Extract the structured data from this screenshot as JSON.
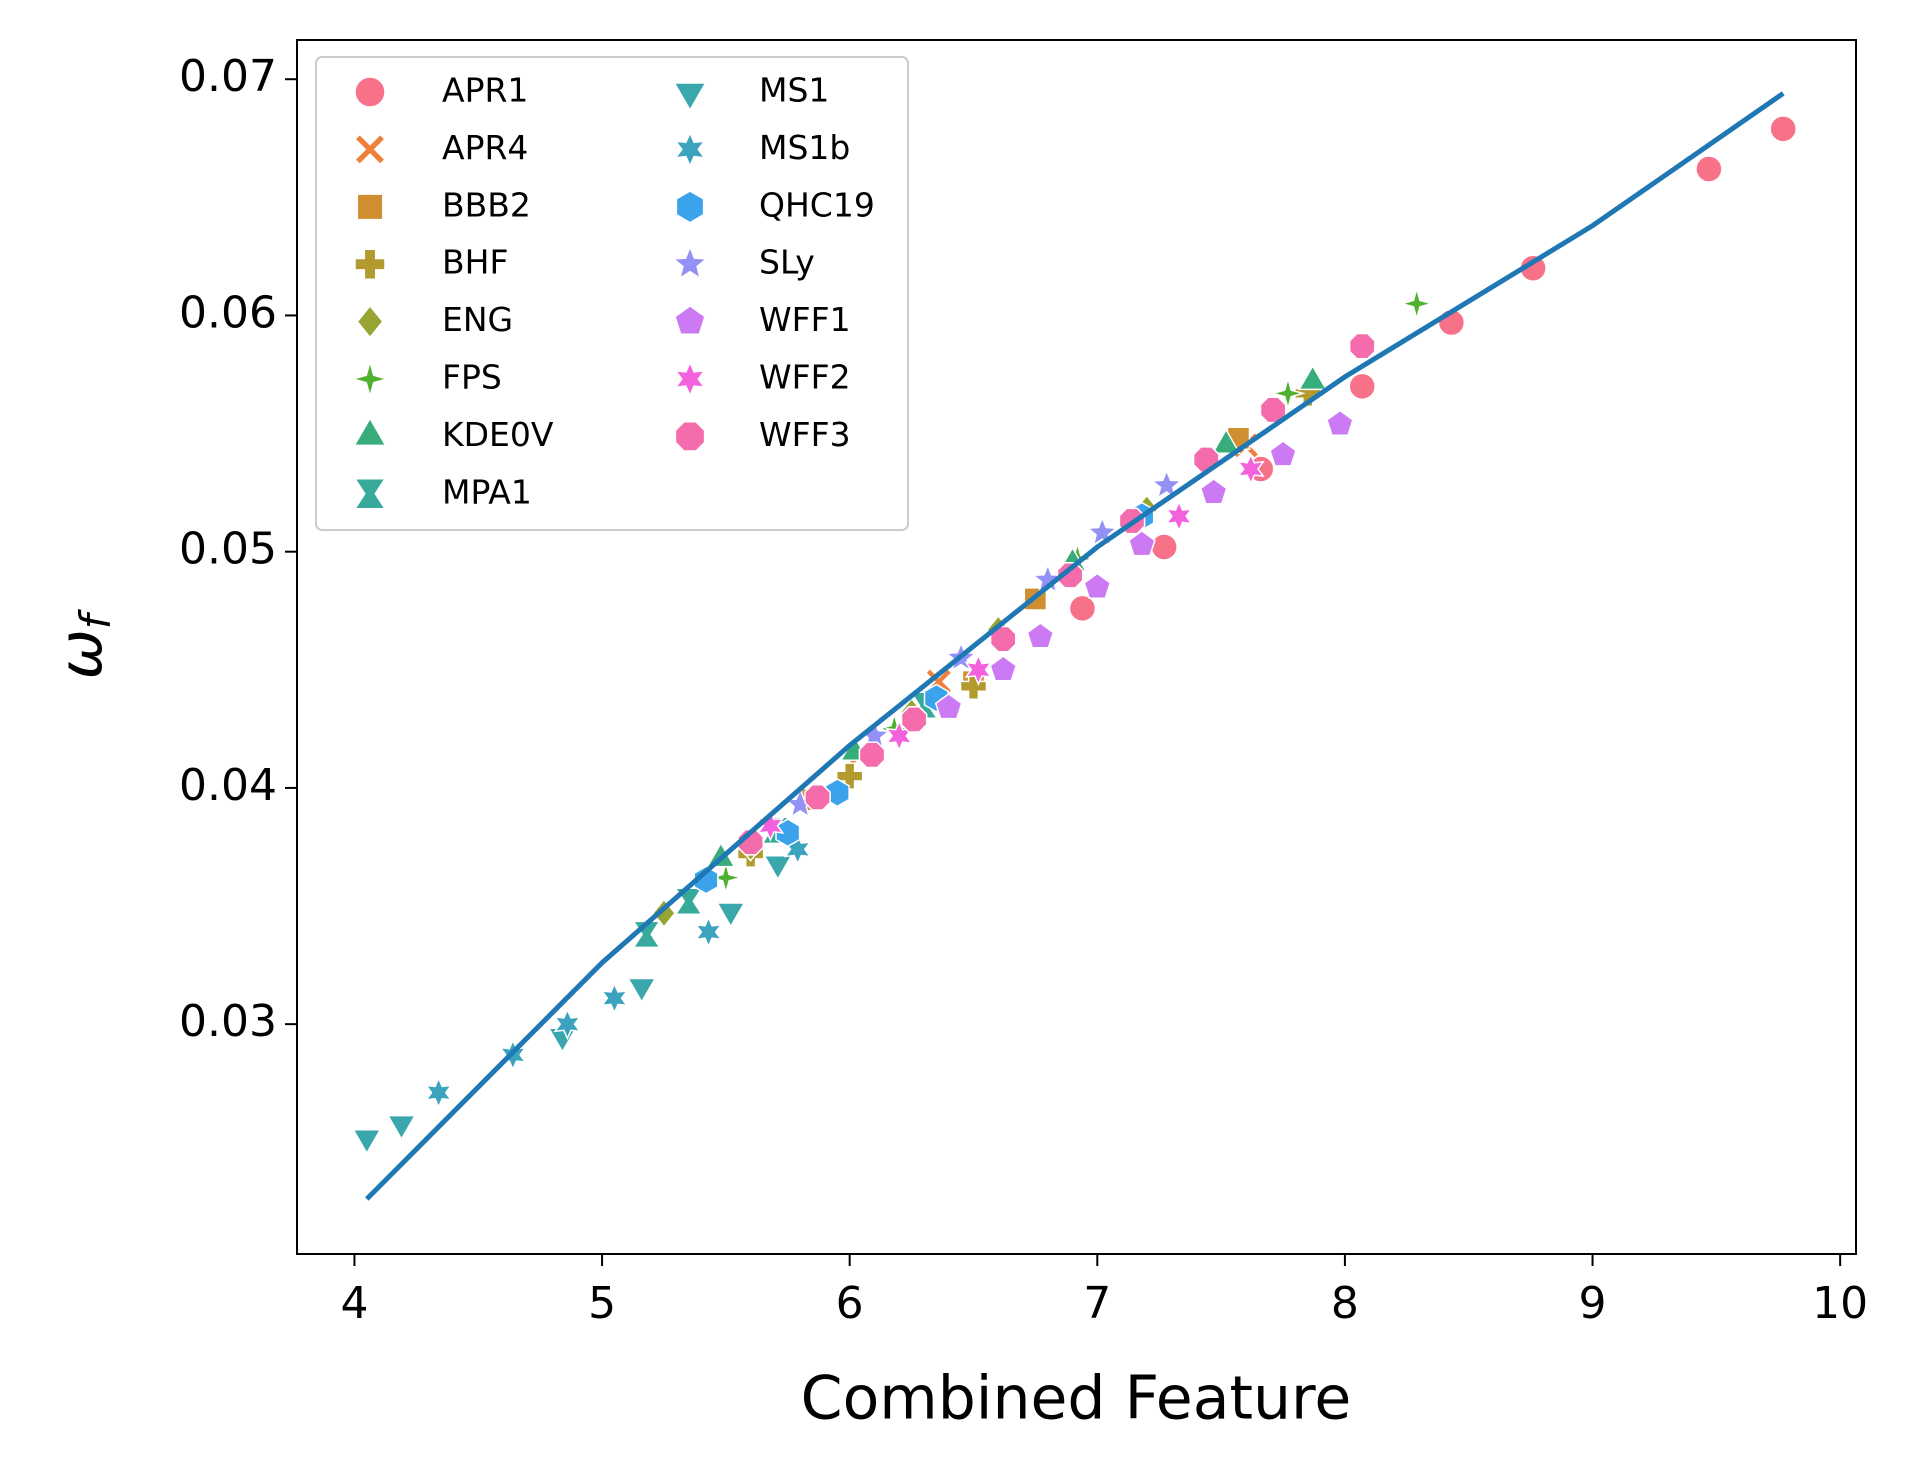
{
  "chart_data": {
    "type": "scatter",
    "xlabel": "Combined Feature",
    "ylabel": {
      "base": "ω",
      "sub": "f"
    },
    "xlim": [
      3.768,
      10.064
    ],
    "ylim": [
      0.02027,
      0.07166
    ],
    "xticks": [
      4,
      5,
      6,
      7,
      8,
      9,
      10
    ],
    "yticks": [
      0.03,
      0.04,
      0.05,
      0.06,
      0.07
    ],
    "legend": "upper left",
    "series": [
      {
        "name": "APR1",
        "color": "#f77189",
        "marker": "circle",
        "x": [
          9.77,
          9.47,
          8.76,
          8.43,
          8.07,
          7.66,
          7.27,
          6.94
        ],
        "values": [
          0.0679,
          0.0662,
          0.062,
          0.0597,
          0.057,
          0.0535,
          0.0502,
          0.0476
        ]
      },
      {
        "name": "APR4",
        "color": "#f07f3a",
        "marker": "x",
        "x": [
          6.36,
          6.05,
          7.6
        ],
        "values": [
          0.0445,
          0.0415,
          0.0545
        ]
      },
      {
        "name": "BBB2",
        "color": "#cf8f30",
        "marker": "square",
        "x": [
          7.57,
          6.75,
          6.5,
          5.85
        ],
        "values": [
          0.0548,
          0.048,
          0.0445,
          0.0395
        ]
      },
      {
        "name": "BHF",
        "color": "#b29a2f",
        "marker": "plus",
        "x": [
          7.85,
          6.5,
          6.0,
          5.6
        ],
        "values": [
          0.0567,
          0.0443,
          0.0405,
          0.0372
        ]
      },
      {
        "name": "ENG",
        "color": "#97a431",
        "marker": "diamond",
        "x": [
          5.25,
          5.6,
          6.25,
          7.2,
          6.6
        ],
        "values": [
          0.0347,
          0.0375,
          0.0432,
          0.0518,
          0.0467
        ]
      },
      {
        "name": "FPS",
        "color": "#50b131",
        "marker": "star4",
        "x": [
          8.29,
          7.77,
          6.92,
          6.18,
          5.5
        ],
        "values": [
          0.0605,
          0.0567,
          0.0497,
          0.0425,
          0.0362
        ]
      },
      {
        "name": "KDE0V",
        "color": "#36ad7a",
        "marker": "triangle-up",
        "x": [
          7.87,
          7.52,
          6.9,
          6.02,
          5.48
        ],
        "values": [
          0.0572,
          0.0545,
          0.0495,
          0.0415,
          0.037
        ]
      },
      {
        "name": "MPA1",
        "color": "#37aa9b",
        "marker": "hourglass",
        "x": [
          5.18,
          5.35,
          5.7,
          6.3
        ],
        "values": [
          0.0338,
          0.0352,
          0.0382,
          0.0435
        ]
      },
      {
        "name": "MS1",
        "color": "#39a7ac",
        "marker": "triangle-down",
        "x": [
          4.05,
          4.19,
          4.84,
          5.16,
          5.52,
          5.71
        ],
        "values": [
          0.0252,
          0.0258,
          0.0295,
          0.0316,
          0.0348,
          0.0368
        ]
      },
      {
        "name": "MS1b",
        "color": "#3ba3be",
        "marker": "star6",
        "x": [
          4.34,
          4.64,
          4.86,
          5.05,
          5.43,
          5.79
        ],
        "values": [
          0.0271,
          0.0287,
          0.03,
          0.0311,
          0.0339,
          0.0374
        ]
      },
      {
        "name": "QHC19",
        "color": "#3ba3ec",
        "marker": "hexagon",
        "x": [
          5.42,
          5.75,
          5.95,
          6.35,
          7.18
        ],
        "values": [
          0.0361,
          0.0381,
          0.0398,
          0.0438,
          0.0515
        ]
      },
      {
        "name": "SLy",
        "color": "#9491f6",
        "marker": "star5",
        "x": [
          7.28,
          7.02,
          6.8,
          6.45,
          6.1,
          5.8
        ],
        "values": [
          0.0528,
          0.0508,
          0.0488,
          0.0455,
          0.0422,
          0.0393
        ]
      },
      {
        "name": "WFF1",
        "color": "#cc79f4",
        "marker": "pentagon",
        "x": [
          7.98,
          7.75,
          7.47,
          7.18,
          7.0,
          6.77,
          6.62,
          6.4
        ],
        "values": [
          0.0554,
          0.0541,
          0.0525,
          0.0503,
          0.0485,
          0.0464,
          0.045,
          0.0434
        ]
      },
      {
        "name": "WFF2",
        "color": "#f461dd",
        "marker": "star6",
        "x": [
          7.62,
          7.33,
          6.52,
          6.2,
          5.68
        ],
        "values": [
          0.0535,
          0.0515,
          0.045,
          0.0422,
          0.0384
        ]
      },
      {
        "name": "WFF3",
        "color": "#f56cad",
        "marker": "octagon",
        "x": [
          8.07,
          7.71,
          7.44,
          7.14,
          6.89,
          6.62,
          6.26,
          6.09,
          5.87,
          5.6
        ],
        "values": [
          0.0587,
          0.056,
          0.0539,
          0.0513,
          0.049,
          0.0463,
          0.0429,
          0.0414,
          0.0396,
          0.0377
        ]
      }
    ],
    "fit": {
      "color": "#1f77b4",
      "x": [
        4.05,
        5,
        6,
        7,
        8,
        9,
        9.77
      ],
      "values": [
        0.0226,
        0.0326,
        0.0418,
        0.0502,
        0.0574,
        0.0638,
        0.0694
      ]
    }
  }
}
